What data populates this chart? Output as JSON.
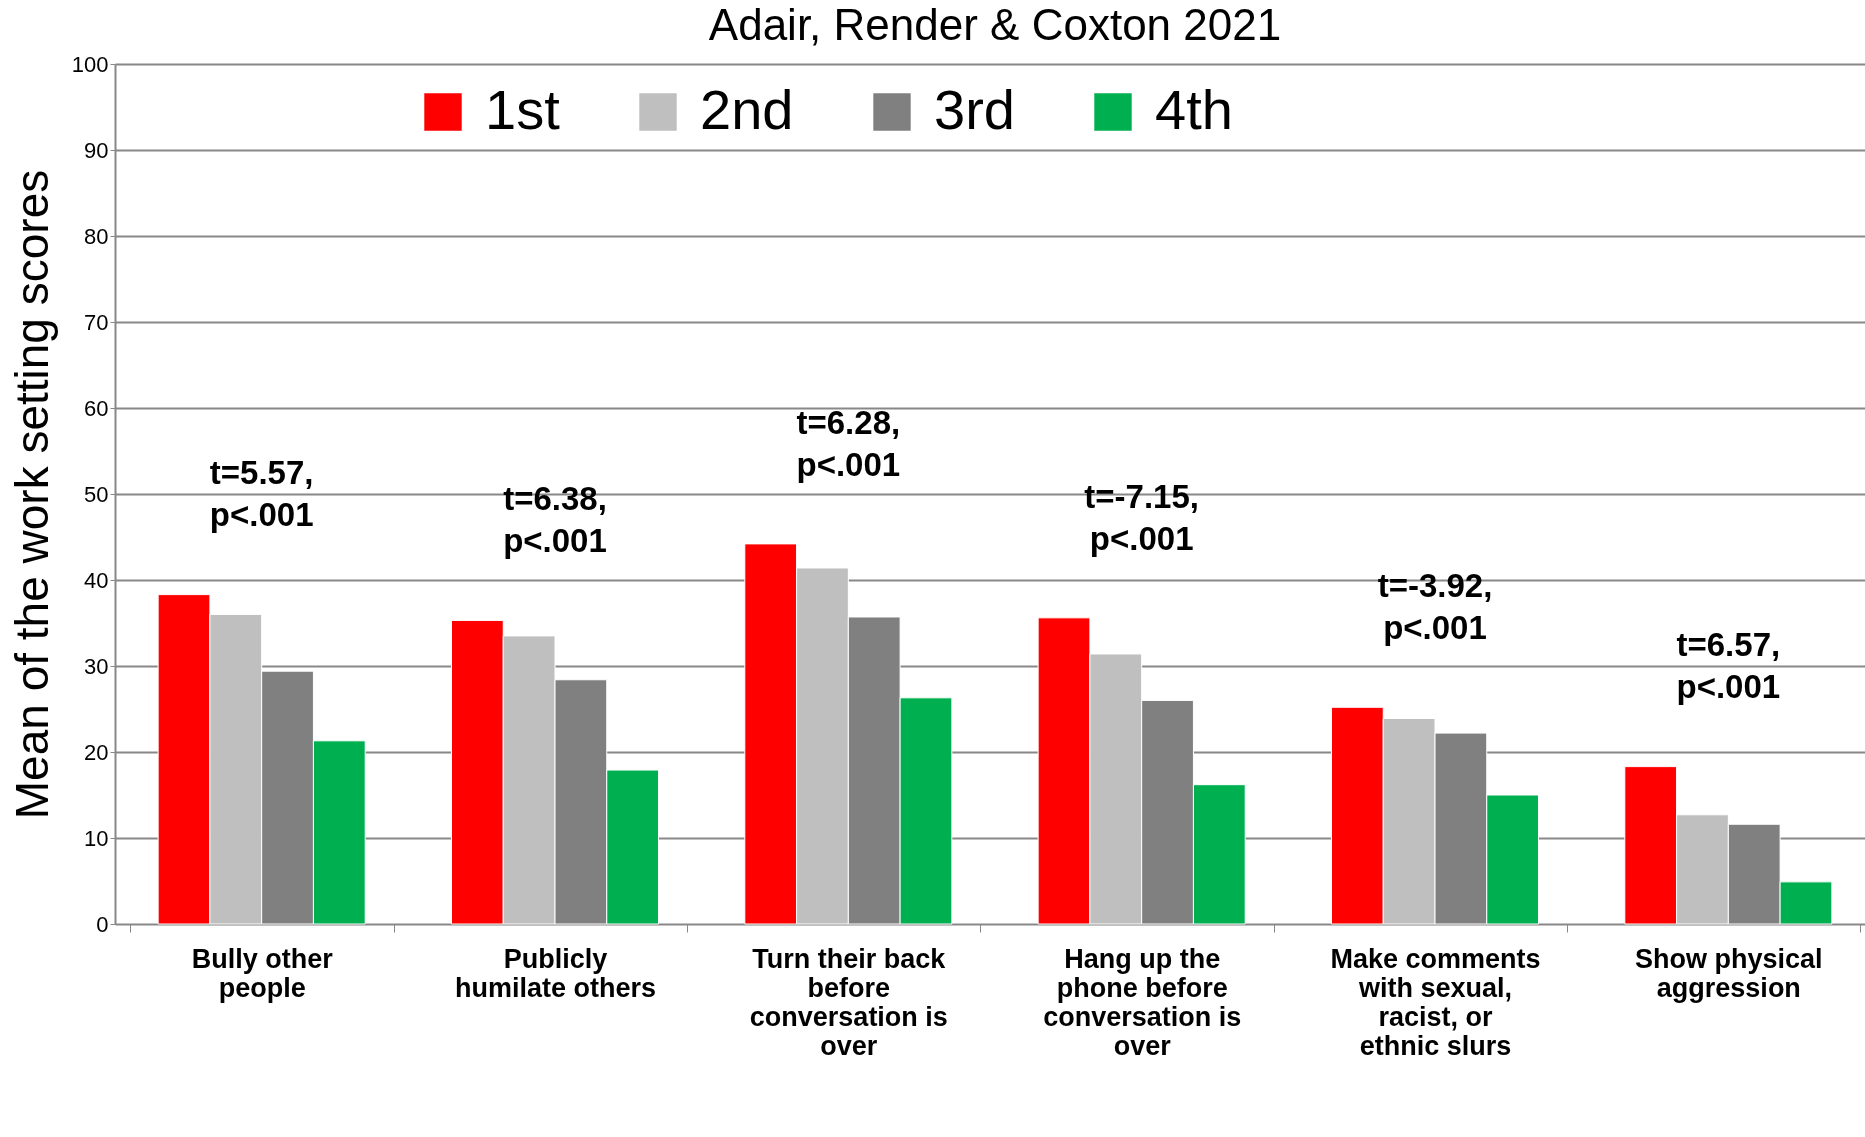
{
  "chart_data": {
    "type": "bar",
    "title": "Adair, Render & Coxton 2021",
    "ylabel": "Mean of the work setting scores",
    "categories": [
      "Bully other people",
      "Publicly humilate others",
      "Turn their  back before conversation is over",
      "Hang up the phone before conversation is over",
      "Make comments with sexual, racist, or ethnic slurs",
      "Show physical aggression"
    ],
    "series": [
      {
        "name": "1st",
        "color": "#ff0000",
        "values": [
          38.3,
          35.3,
          44.2,
          35.6,
          25.2,
          18.3
        ]
      },
      {
        "name": "2nd",
        "color": "#bfbfbf",
        "values": [
          36.0,
          33.5,
          41.4,
          31.4,
          23.9,
          12.7
        ]
      },
      {
        "name": "3rd",
        "color": "#808080",
        "values": [
          29.4,
          28.4,
          35.7,
          26.0,
          22.2,
          11.6
        ]
      },
      {
        "name": "4th",
        "color": "#00b050",
        "values": [
          21.3,
          17.9,
          26.3,
          16.2,
          15.0,
          4.9
        ]
      }
    ],
    "ylim": [
      0,
      100
    ],
    "yticks": [
      0,
      10,
      20,
      30,
      40,
      50,
      60,
      70,
      80,
      90,
      100
    ],
    "grid": "y",
    "legend": "top",
    "annotations": [
      "t=5.57,\np<.001",
      "t=6.38,\np<.001",
      "t=6.28,\np<.001",
      "t=-7.15,\np<.001",
      "t=-3.92,\np<.001",
      "t=6.57,\np<.001"
    ]
  }
}
